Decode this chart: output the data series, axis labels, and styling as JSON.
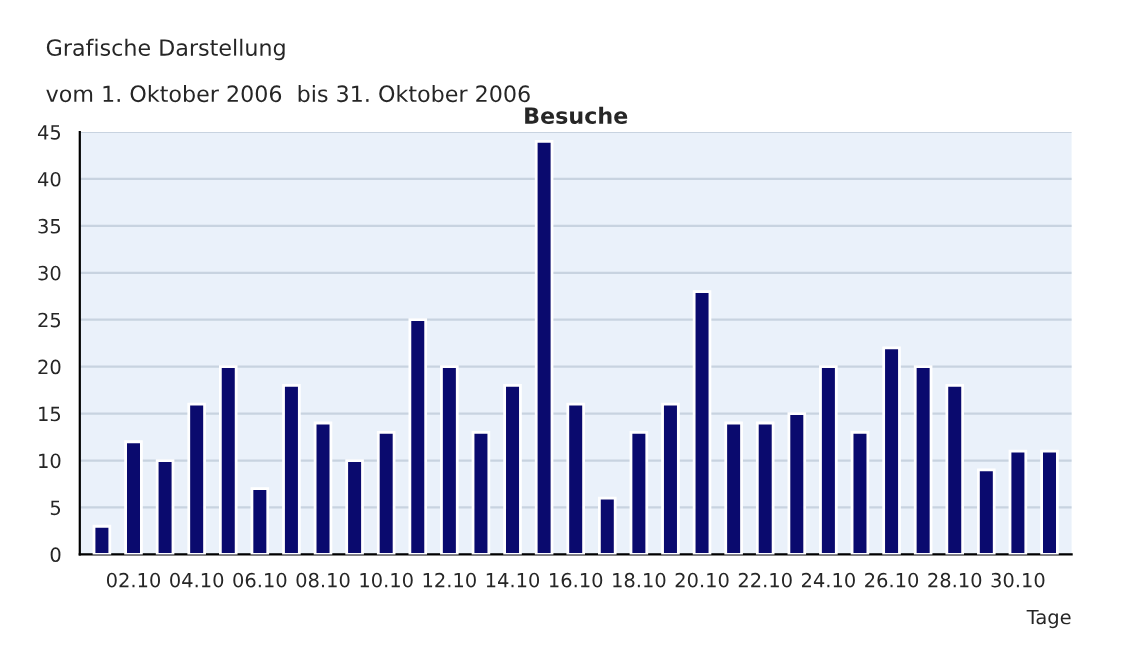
{
  "chart_data": {
    "type": "bar",
    "title": "Grafische Darstellung",
    "subtitle": "vom 1. Oktober 2006  bis 31. Oktober 2006",
    "annotations": [
      "Besuche"
    ],
    "xlabel": "Tage",
    "categories": [
      null,
      "02.10",
      null,
      "04.10",
      null,
      "06.10",
      null,
      "08.10",
      null,
      "10.10",
      null,
      "12.10",
      null,
      "14.10",
      null,
      "16.10",
      null,
      "18.10",
      null,
      "20.10",
      null,
      "22.10",
      null,
      "24.10",
      null,
      "26.10",
      null,
      "28.10",
      null,
      "30.10",
      null
    ],
    "values": [
      3,
      12,
      10,
      16,
      20,
      7,
      18,
      14,
      10,
      13,
      25,
      20,
      13,
      18,
      44,
      16,
      6,
      13,
      16,
      28,
      14,
      14,
      15,
      20,
      13,
      22,
      20,
      18,
      9,
      11,
      11
    ],
    "color": "#0a0a6e",
    "ylim": [
      0,
      45
    ],
    "yticks": [
      0,
      5,
      10,
      15,
      20,
      25,
      30,
      35,
      40,
      45
    ],
    "grid": "y"
  }
}
